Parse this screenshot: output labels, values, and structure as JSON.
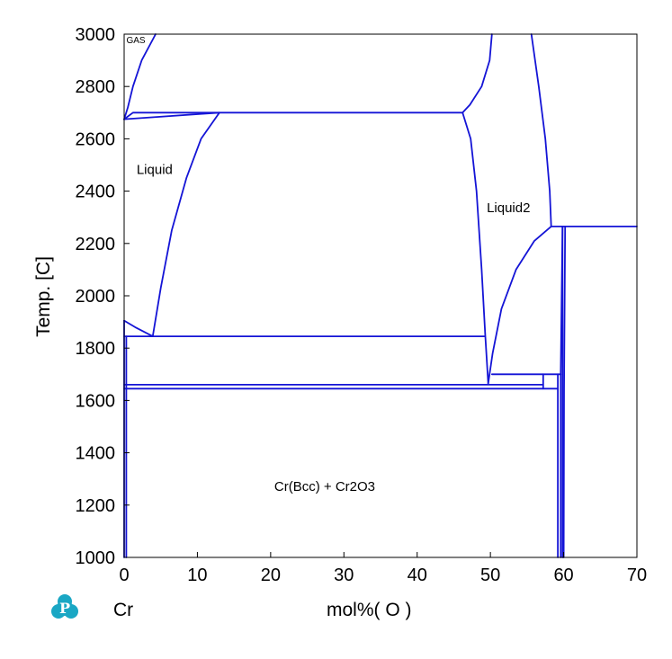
{
  "chart_data": {
    "type": "line",
    "title": "",
    "xlabel": "mol%(  O  )",
    "ylabel": "Temp.  [C]",
    "element_label": "Cr",
    "xlim": [
      0,
      70
    ],
    "ylim": [
      1000,
      3000
    ],
    "x_ticks": [
      0,
      10,
      20,
      30,
      40,
      50,
      60,
      70
    ],
    "y_ticks": [
      1000,
      1200,
      1400,
      1600,
      1800,
      2000,
      2200,
      2400,
      2600,
      2800,
      3000
    ],
    "grid": false,
    "line_color": "#1414d6",
    "logo_color": "#1aa7c4",
    "region_labels": [
      {
        "text": "GAS",
        "x": 0.3,
        "y": 2965,
        "size": "small"
      },
      {
        "text": "Liquid",
        "x": 1.7,
        "y": 2465,
        "size": "normal"
      },
      {
        "text": "Liquid2",
        "x": 49.5,
        "y": 2320,
        "size": "normal"
      },
      {
        "text": "Cr(Bcc) + Cr2O3",
        "x": 20.5,
        "y": 1255,
        "size": "normal"
      }
    ],
    "series": [
      {
        "points": [
          [
            0,
            2675
          ],
          [
            1.2,
            2700
          ],
          [
            13,
            2700
          ],
          [
            46.2,
            2700
          ]
        ]
      },
      {
        "points": [
          [
            0,
            2675
          ],
          [
            0.5,
            2720
          ],
          [
            1.2,
            2800
          ],
          [
            2.4,
            2900
          ],
          [
            4.3,
            3000
          ]
        ]
      },
      {
        "points": [
          [
            0,
            2675
          ],
          [
            13,
            2700
          ]
        ]
      },
      {
        "points": [
          [
            13,
            2700
          ],
          [
            10.5,
            2600
          ],
          [
            8.5,
            2450
          ],
          [
            6.5,
            2250
          ],
          [
            5,
            2030
          ],
          [
            3.9,
            1845
          ]
        ]
      },
      {
        "points": [
          [
            0,
            1905
          ],
          [
            1.5,
            1880
          ],
          [
            3.9,
            1845
          ]
        ]
      },
      {
        "points": [
          [
            0,
            1845
          ],
          [
            49.2,
            1845
          ]
        ]
      },
      {
        "points": [
          [
            0,
            1660
          ],
          [
            57.2,
            1660
          ]
        ]
      },
      {
        "points": [
          [
            0,
            1645
          ],
          [
            59.2,
            1645
          ]
        ]
      },
      {
        "points": [
          [
            0,
            1905
          ],
          [
            0,
            1000
          ]
        ]
      },
      {
        "points": [
          [
            0.3,
            1845
          ],
          [
            0.3,
            1000
          ]
        ]
      },
      {
        "points": [
          [
            46.2,
            2700
          ],
          [
            47.3,
            2600
          ],
          [
            48.1,
            2400
          ],
          [
            48.8,
            2100
          ],
          [
            49.3,
            1850
          ],
          [
            49.7,
            1665
          ]
        ]
      },
      {
        "points": [
          [
            46.2,
            2700
          ],
          [
            47.2,
            2730
          ],
          [
            48.8,
            2800
          ],
          [
            49.9,
            2900
          ],
          [
            50.2,
            3000
          ]
        ]
      },
      {
        "points": [
          [
            55.6,
            3000
          ],
          [
            56.6,
            2800
          ],
          [
            57.5,
            2600
          ],
          [
            58.1,
            2400
          ],
          [
            58.3,
            2265
          ]
        ]
      },
      {
        "points": [
          [
            49.7,
            1665
          ],
          [
            50.3,
            1780
          ],
          [
            51.5,
            1950
          ],
          [
            53.5,
            2100
          ],
          [
            56,
            2210
          ],
          [
            58.3,
            2265
          ]
        ]
      },
      {
        "points": [
          [
            58.3,
            2265
          ],
          [
            70,
            2265
          ]
        ]
      },
      {
        "points": [
          [
            50.2,
            1700
          ],
          [
            59.6,
            1700
          ]
        ]
      },
      {
        "points": [
          [
            57.2,
            1700
          ],
          [
            57.2,
            1645
          ]
        ]
      },
      {
        "points": [
          [
            59.2,
            1700
          ],
          [
            59.2,
            1000
          ]
        ]
      },
      {
        "points": [
          [
            59.6,
            1700
          ],
          [
            59.6,
            1000
          ]
        ]
      },
      {
        "points": [
          [
            59.85,
            2265
          ],
          [
            59.85,
            1000
          ]
        ]
      },
      {
        "points": [
          [
            60.2,
            2265
          ],
          [
            60.05,
            1645
          ],
          [
            60,
            1000
          ]
        ]
      },
      {
        "points": [
          [
            59.6,
            1700
          ],
          [
            59.85,
            2265
          ]
        ]
      }
    ]
  }
}
